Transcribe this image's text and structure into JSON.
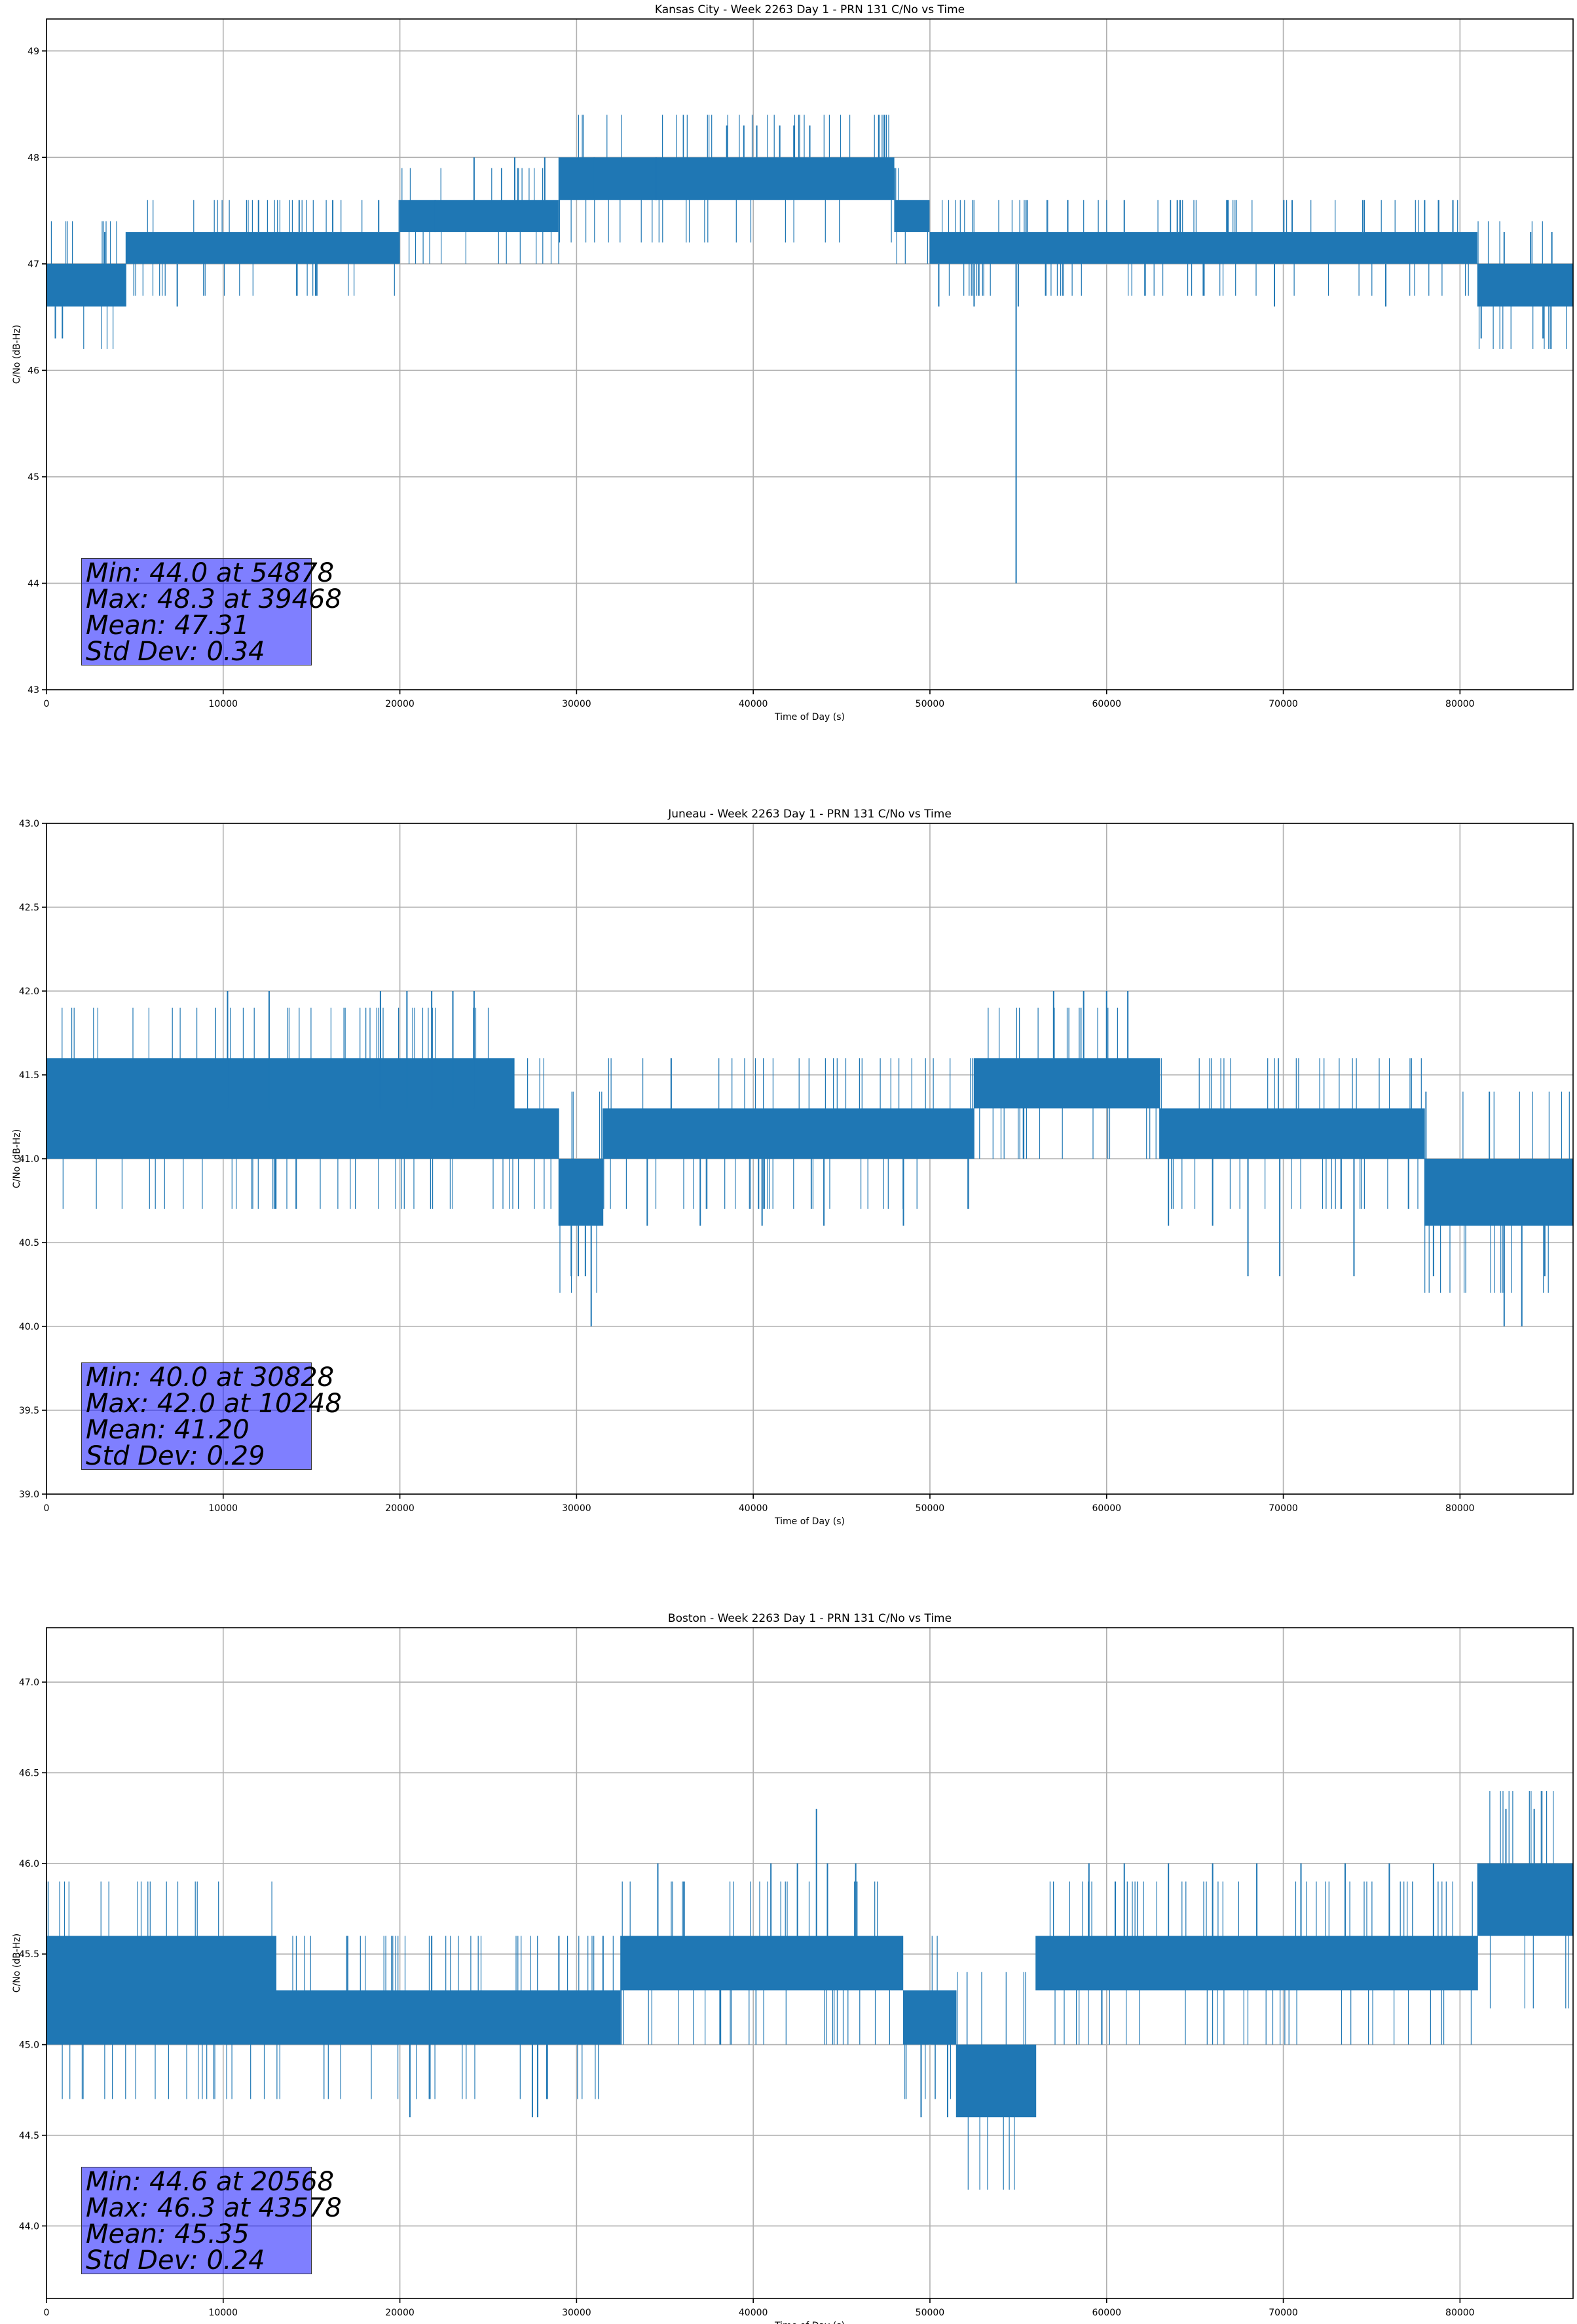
{
  "figure": {
    "background": "#ffffff",
    "line_color": "#1f77b4",
    "grid_color": "#b0b0b0",
    "stats_box_color": "#0000ff"
  },
  "chart_data": [
    {
      "type": "line",
      "title": "Kansas City - Week 2263 Day 1 - PRN 131 C/No vs Time",
      "xlabel": "Time of Day (s)",
      "ylabel": "C/No (dB-Hz)",
      "xlim": [
        0,
        86400
      ],
      "ylim": [
        43.0,
        49.3
      ],
      "xticks": [
        0,
        10000,
        20000,
        30000,
        40000,
        50000,
        60000,
        70000,
        80000
      ],
      "xtick_labels": [
        "0",
        "10000",
        "20000",
        "30000",
        "40000",
        "50000",
        "60000",
        "70000",
        "80000"
      ],
      "yticks": [
        43,
        44,
        45,
        46,
        47,
        48,
        49
      ],
      "ytick_labels": [
        "43",
        "44",
        "45",
        "46",
        "47",
        "48",
        "49"
      ],
      "grid": true,
      "stats": {
        "min_line": "Min: 44.0 at 54878",
        "max_line": "Max: 48.3 at 39468",
        "mean_line": "Mean: 47.31",
        "std_line": "Std Dev: 0.34"
      },
      "series": [
        {
          "bands": [
            {
              "x0": 0,
              "x1": 4500,
              "lo": 46.6,
              "hi": 47.0
            },
            {
              "x0": 4500,
              "x1": 20000,
              "lo": 47.0,
              "hi": 47.3
            },
            {
              "x0": 20000,
              "x1": 29000,
              "lo": 47.3,
              "hi": 47.6
            },
            {
              "x0": 29000,
              "x1": 38000,
              "lo": 47.6,
              "hi": 48.0
            },
            {
              "x0": 38000,
              "x1": 48000,
              "lo": 47.6,
              "hi": 48.0
            },
            {
              "x0": 48000,
              "x1": 50000,
              "lo": 47.3,
              "hi": 47.6
            },
            {
              "x0": 50000,
              "x1": 81000,
              "lo": 47.0,
              "hi": 47.3
            },
            {
              "x0": 81000,
              "x1": 86400,
              "lo": 46.6,
              "hi": 47.0
            }
          ],
          "spikes": [
            [
              54878,
              44.0
            ],
            [
              39468,
              48.3
            ],
            [
              38500,
              48.3
            ],
            [
              40200,
              48.3
            ],
            [
              41500,
              48.3
            ],
            [
              43200,
              48.3
            ],
            [
              42300,
              48.3
            ],
            [
              12000,
              47.6
            ],
            [
              14300,
              47.6
            ],
            [
              16200,
              47.6
            ],
            [
              18800,
              47.6
            ],
            [
              22000,
              47.6
            ],
            [
              24200,
              48.0
            ],
            [
              26500,
              48.0
            ],
            [
              28200,
              48.0
            ],
            [
              31000,
              48.0
            ],
            [
              34500,
              48.0
            ],
            [
              55500,
              47.6
            ],
            [
              57800,
              47.6
            ],
            [
              61000,
              47.6
            ],
            [
              64000,
              47.6
            ],
            [
              66800,
              47.6
            ],
            [
              70500,
              47.6
            ],
            [
              74500,
              47.6
            ],
            [
              78000,
              47.6
            ],
            [
              79600,
              47.6
            ],
            [
              84000,
              47.3
            ],
            [
              85200,
              47.3
            ],
            [
              82500,
              47.3
            ],
            [
              500,
              46.3
            ],
            [
              900,
              46.3
            ],
            [
              3300,
              47.3
            ],
            [
              7400,
              46.6
            ],
            [
              50500,
              46.6
            ],
            [
              52500,
              46.6
            ],
            [
              55000,
              46.6
            ],
            [
              69500,
              46.6
            ],
            [
              75800,
              46.6
            ],
            [
              81200,
              46.3
            ],
            [
              84700,
              46.3
            ]
          ]
        }
      ]
    },
    {
      "type": "line",
      "title": "Juneau - Week 2263 Day 1 - PRN 131 C/No vs Time",
      "xlabel": "Time of Day (s)",
      "ylabel": "C/No (dB-Hz)",
      "xlim": [
        0,
        86400
      ],
      "ylim": [
        39.0,
        43.0
      ],
      "xticks": [
        0,
        10000,
        20000,
        30000,
        40000,
        50000,
        60000,
        70000,
        80000
      ],
      "xtick_labels": [
        "0",
        "10000",
        "20000",
        "30000",
        "40000",
        "50000",
        "60000",
        "70000",
        "80000"
      ],
      "yticks": [
        39.0,
        39.5,
        40.0,
        40.5,
        41.0,
        41.5,
        42.0,
        42.5,
        43.0
      ],
      "ytick_labels": [
        "39.0",
        "39.5",
        "40.0",
        "40.5",
        "41.0",
        "41.5",
        "42.0",
        "42.5",
        "43.0"
      ],
      "grid": true,
      "stats": {
        "min_line": "Min: 40.0 at 30828",
        "max_line": "Max: 42.0 at 10248",
        "mean_line": "Mean: 41.20",
        "std_line": "Std Dev: 0.29"
      },
      "series": [
        {
          "bands": [
            {
              "x0": 0,
              "x1": 26500,
              "lo": 41.3,
              "hi": 41.6
            },
            {
              "x0": 0,
              "x1": 26500,
              "lo": 41.0,
              "hi": 41.3
            },
            {
              "x0": 26500,
              "x1": 29000,
              "lo": 41.0,
              "hi": 41.3
            },
            {
              "x0": 29000,
              "x1": 31500,
              "lo": 40.6,
              "hi": 41.0
            },
            {
              "x0": 31500,
              "x1": 52500,
              "lo": 41.0,
              "hi": 41.3
            },
            {
              "x0": 52500,
              "x1": 63000,
              "lo": 41.3,
              "hi": 41.6
            },
            {
              "x0": 63000,
              "x1": 78000,
              "lo": 41.0,
              "hi": 41.3
            },
            {
              "x0": 78000,
              "x1": 81000,
              "lo": 40.6,
              "hi": 41.0
            },
            {
              "x0": 81000,
              "x1": 86400,
              "lo": 40.6,
              "hi": 41.0
            }
          ],
          "spikes": [
            [
              10248,
              42.0
            ],
            [
              12600,
              42.0
            ],
            [
              18900,
              42.0
            ],
            [
              20400,
              42.0
            ],
            [
              21800,
              42.0
            ],
            [
              23000,
              42.0
            ],
            [
              24200,
              42.0
            ],
            [
              57000,
              42.0
            ],
            [
              58700,
              42.0
            ],
            [
              60000,
              42.0
            ],
            [
              61200,
              42.0
            ],
            [
              30828,
              40.0
            ],
            [
              29700,
              40.3
            ],
            [
              30100,
              40.3
            ],
            [
              30500,
              40.3
            ],
            [
              68000,
              40.3
            ],
            [
              69800,
              40.3
            ],
            [
              74000,
              40.3
            ],
            [
              78500,
              40.3
            ],
            [
              82500,
              40.0
            ],
            [
              83500,
              40.0
            ],
            [
              84800,
              40.3
            ],
            [
              34000,
              40.6
            ],
            [
              37000,
              40.6
            ],
            [
              40500,
              40.6
            ],
            [
              44000,
              40.6
            ],
            [
              48500,
              40.6
            ],
            [
              63500,
              40.6
            ],
            [
              66000,
              40.6
            ]
          ]
        }
      ]
    },
    {
      "type": "line",
      "title": "Boston - Week 2263 Day 1 - PRN 131 C/No vs Time",
      "xlabel": "Time of Day (s)",
      "ylabel": "C/No (dB-Hz)",
      "xlim": [
        0,
        86400
      ],
      "ylim": [
        43.6,
        47.3
      ],
      "xticks": [
        0,
        10000,
        20000,
        30000,
        40000,
        50000,
        60000,
        70000,
        80000
      ],
      "xtick_labels": [
        "0",
        "10000",
        "20000",
        "30000",
        "40000",
        "50000",
        "60000",
        "70000",
        "80000"
      ],
      "yticks": [
        44.0,
        44.5,
        45.0,
        45.5,
        46.0,
        46.5,
        47.0
      ],
      "ytick_labels": [
        "44.0",
        "44.5",
        "45.0",
        "45.5",
        "46.0",
        "46.5",
        "47.0"
      ],
      "grid": true,
      "stats": {
        "min_line": "Min: 44.6 at 20568",
        "max_line": "Max: 46.3 at 43578",
        "mean_line": "Mean: 45.35",
        "std_line": "Std Dev: 0.24"
      },
      "series": [
        {
          "bands": [
            {
              "x0": 0,
              "x1": 13000,
              "lo": 45.3,
              "hi": 45.6
            },
            {
              "x0": 0,
              "x1": 13000,
              "lo": 45.0,
              "hi": 45.3
            },
            {
              "x0": 13000,
              "x1": 32500,
              "lo": 45.0,
              "hi": 45.3
            },
            {
              "x0": 32500,
              "x1": 48500,
              "lo": 45.3,
              "hi": 45.6
            },
            {
              "x0": 48500,
              "x1": 51500,
              "lo": 45.0,
              "hi": 45.3
            },
            {
              "x0": 51500,
              "x1": 56000,
              "lo": 44.6,
              "hi": 45.0
            },
            {
              "x0": 56000,
              "x1": 81000,
              "lo": 45.3,
              "hi": 45.6
            },
            {
              "x0": 81000,
              "x1": 86400,
              "lo": 45.6,
              "hi": 46.0
            }
          ],
          "spikes": [
            [
              43578,
              46.3
            ],
            [
              82600,
              46.3
            ],
            [
              84200,
              46.3
            ],
            [
              34600,
              46.0
            ],
            [
              41000,
              46.0
            ],
            [
              42500,
              46.0
            ],
            [
              44200,
              46.0
            ],
            [
              45800,
              46.0
            ],
            [
              59000,
              46.0
            ],
            [
              61000,
              46.0
            ],
            [
              63500,
              46.0
            ],
            [
              66000,
              46.0
            ],
            [
              68500,
              46.0
            ],
            [
              71000,
              46.0
            ],
            [
              73500,
              46.0
            ],
            [
              76000,
              46.0
            ],
            [
              78500,
              46.0
            ],
            [
              20568,
              44.6
            ],
            [
              27500,
              44.6
            ],
            [
              27800,
              44.6
            ],
            [
              49500,
              44.6
            ],
            [
              51000,
              44.6
            ],
            [
              17000,
              45.6
            ],
            [
              21800,
              45.6
            ],
            [
              29000,
              45.6
            ],
            [
              31500,
              45.6
            ]
          ]
        }
      ]
    }
  ]
}
